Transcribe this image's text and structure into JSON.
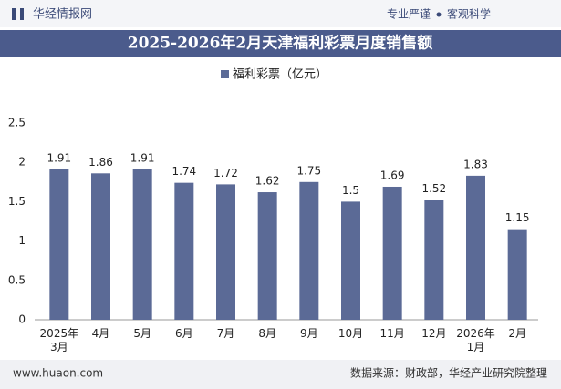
{
  "header": {
    "logo": "华经情报网",
    "slogan_left": "专业严谨",
    "slogan_right": "客观科学"
  },
  "chart_data": {
    "type": "bar",
    "title": "2025-2026年2月天津福利彩票月度销售额",
    "categories": [
      "2025年\n3月",
      "4月",
      "5月",
      "6月",
      "7月",
      "8月",
      "9月",
      "10月",
      "11月",
      "12月",
      "2026年\n1月",
      "2月"
    ],
    "series": [
      {
        "name": "福利彩票（亿元）",
        "color": "#5b6a96",
        "values": [
          1.91,
          1.86,
          1.91,
          1.74,
          1.72,
          1.62,
          1.75,
          1.5,
          1.69,
          1.52,
          1.83,
          1.15
        ]
      }
    ],
    "ylim": [
      0,
      2.5
    ],
    "yticks": [
      0,
      0.5,
      1,
      1.5,
      2,
      2.5
    ],
    "grid": false
  },
  "footer": {
    "website": "www.huaon.com",
    "source": "数据来源：财政部，华经产业研究院整理"
  }
}
